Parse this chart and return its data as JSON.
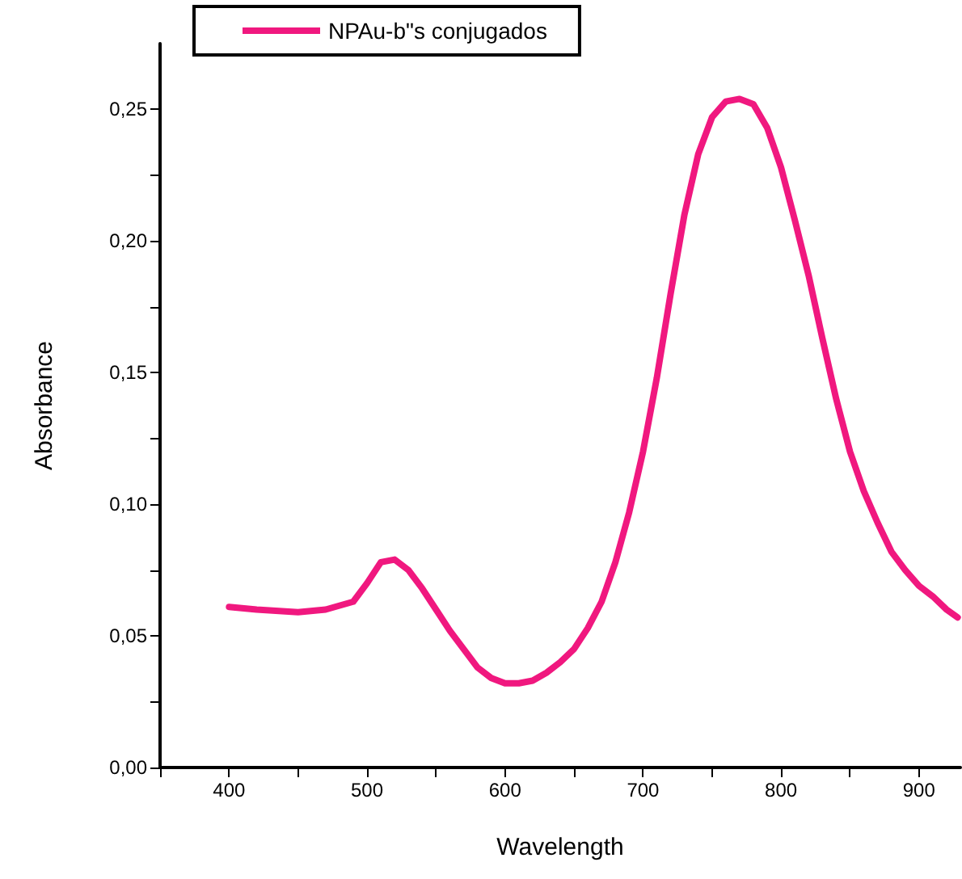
{
  "chart_data": {
    "type": "line",
    "xlabel": "Wavelength",
    "ylabel": "Absorbance",
    "x": [
      400,
      420,
      450,
      470,
      490,
      500,
      510,
      520,
      530,
      540,
      550,
      560,
      570,
      580,
      590,
      600,
      610,
      620,
      630,
      640,
      650,
      660,
      670,
      680,
      690,
      700,
      710,
      720,
      730,
      740,
      750,
      760,
      770,
      780,
      790,
      800,
      810,
      820,
      830,
      840,
      850,
      860,
      870,
      880,
      890,
      900,
      910,
      920,
      928
    ],
    "series": [
      {
        "name": "NPAu-b\"s conjugados",
        "color": "#f0187f",
        "values": [
          0.061,
          0.06,
          0.059,
          0.06,
          0.063,
          0.07,
          0.078,
          0.079,
          0.075,
          0.068,
          0.06,
          0.052,
          0.045,
          0.038,
          0.034,
          0.032,
          0.032,
          0.033,
          0.036,
          0.04,
          0.045,
          0.053,
          0.063,
          0.078,
          0.097,
          0.12,
          0.148,
          0.18,
          0.21,
          0.233,
          0.247,
          0.253,
          0.254,
          0.252,
          0.243,
          0.228,
          0.208,
          0.187,
          0.163,
          0.14,
          0.12,
          0.105,
          0.093,
          0.082,
          0.075,
          0.069,
          0.065,
          0.06,
          0.057
        ]
      }
    ],
    "xlim": [
      350,
      930
    ],
    "xticks": [
      {
        "value": 350,
        "label": null
      },
      400,
      {
        "value": 450,
        "label": null
      },
      500,
      {
        "value": 550,
        "label": null
      },
      600,
      {
        "value": 650,
        "label": null
      },
      700,
      {
        "value": 750,
        "label": null
      },
      800,
      {
        "value": 850,
        "label": null
      },
      900
    ],
    "ylim": [
      0,
      0.275
    ],
    "yticks": [
      {
        "value": 0,
        "label": "0,00"
      },
      {
        "value": 0.025,
        "label": null
      },
      {
        "value": 0.05,
        "label": "0,05"
      },
      {
        "value": 0.075,
        "label": null
      },
      {
        "value": 0.1,
        "label": "0,10"
      },
      {
        "value": 0.125,
        "label": null
      },
      {
        "value": 0.15,
        "label": "0,15"
      },
      {
        "value": 0.175,
        "label": null
      },
      {
        "value": 0.2,
        "label": "0,20"
      },
      {
        "value": 0.225,
        "label": null
      },
      {
        "value": 0.25,
        "label": "0,25"
      }
    ],
    "grid": false,
    "legend": "top",
    "marker": "none",
    "line_style": "solid"
  }
}
